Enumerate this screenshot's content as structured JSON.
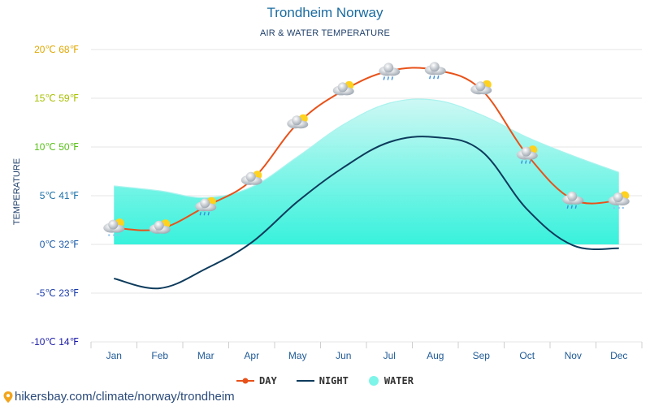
{
  "header": {
    "title": "Trondheim Norway",
    "subtitle": "AIR & WATER TEMPERATURE"
  },
  "footer": {
    "url": "hikersbay.com/climate/norway/trondheim"
  },
  "colors": {
    "day": "#e8521a",
    "night": "#0d3b5c",
    "water": "#7df5e8",
    "water_top": "#aaf3ee",
    "grid": "#e6e6e6",
    "axis_text": "#1f5a96"
  },
  "chart_data": {
    "type": "line",
    "title": "Trondheim Norway",
    "subtitle": "AIR & WATER TEMPERATURE",
    "ylabel": "TEMPERATURE",
    "xlabel": "",
    "ylim": [
      -10,
      20
    ],
    "yticks": [
      {
        "value": 20,
        "label": "20℃ 68℉",
        "color": "#e0a800"
      },
      {
        "value": 15,
        "label": "15℃ 59℉",
        "color": "#a8c000"
      },
      {
        "value": 10,
        "label": "10℃ 50℉",
        "color": "#58c018"
      },
      {
        "value": 5,
        "label": "5℃ 41℉",
        "color": "#1a70a8"
      },
      {
        "value": 0,
        "label": "0℃ 32℉",
        "color": "#1a5aa8"
      },
      {
        "value": -5,
        "label": "-5℃ 23℉",
        "color": "#1a3aa8"
      },
      {
        "value": -10,
        "label": "-10℃ 14℉",
        "color": "#1a1aa8"
      }
    ],
    "categories": [
      "Jan",
      "Feb",
      "Mar",
      "Apr",
      "May",
      "Jun",
      "Jul",
      "Aug",
      "Sep",
      "Oct",
      "Nov",
      "Dec"
    ],
    "series": [
      {
        "name": "DAY",
        "values": [
          1.7,
          1.6,
          3.9,
          6.6,
          12.4,
          15.8,
          17.8,
          17.9,
          15.9,
          9.2,
          4.6,
          4.5
        ]
      },
      {
        "name": "NIGHT",
        "values": [
          -3.5,
          -4.5,
          -2.5,
          0.2,
          4.4,
          7.9,
          10.5,
          11.0,
          9.6,
          3.6,
          -0.1,
          -0.4
        ]
      },
      {
        "name": "WATER",
        "values": [
          6.0,
          5.5,
          4.8,
          5.9,
          9.0,
          12.3,
          14.5,
          14.8,
          13.3,
          11.0,
          9.1,
          7.4
        ]
      }
    ],
    "weather_icons": [
      "snow-cloud-sun-icon",
      "cloud-sun-icon",
      "rain-cloud-sun-icon",
      "cloud-sun-icon",
      "cloud-sun-icon",
      "cloud-sun-icon",
      "rain-cloud-icon",
      "rain-cloud-icon",
      "cloud-sun-icon",
      "rain-cloud-sun-icon",
      "rain-cloud-icon",
      "snow-cloud-sun-icon"
    ],
    "legend": [
      {
        "name": "DAY",
        "color": "#e8521a"
      },
      {
        "name": "NIGHT",
        "color": "#0d3b5c"
      },
      {
        "name": "WATER",
        "color": "#7df5e8"
      }
    ],
    "legend_position": "bottom",
    "grid": true
  }
}
